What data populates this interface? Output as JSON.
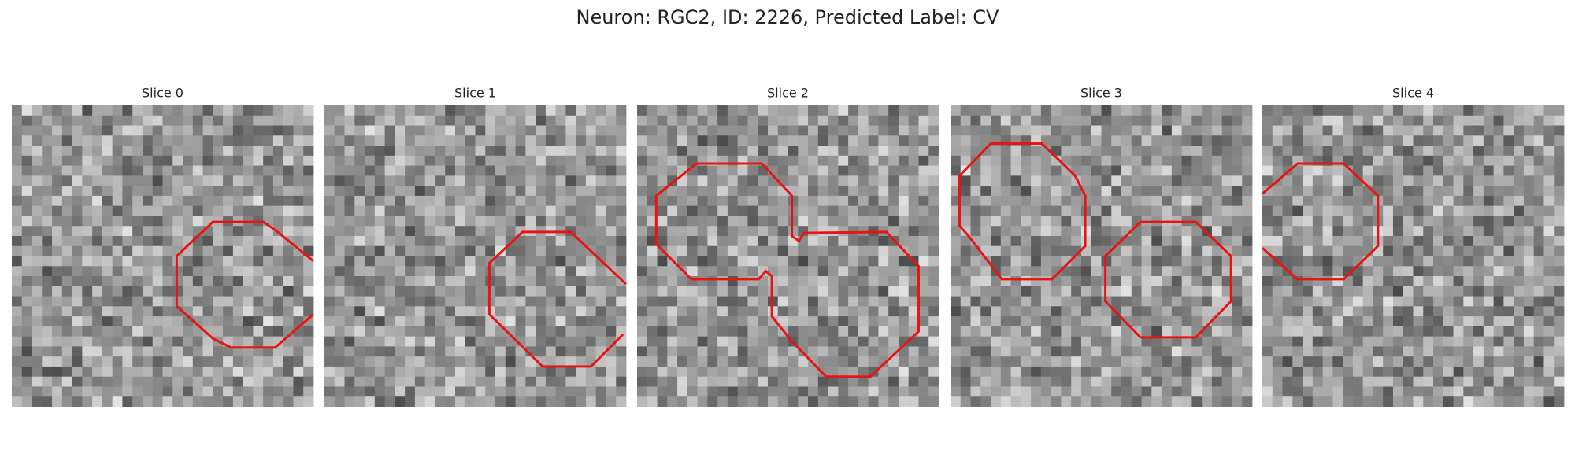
{
  "title": "Neuron: RGC2, ID: 2226, Predicted Label: CV",
  "panels": [
    {
      "title": "Slice 0"
    },
    {
      "title": "Slice 1"
    },
    {
      "title": "Slice 2"
    },
    {
      "title": "Slice 3"
    },
    {
      "title": "Slice 4"
    }
  ]
}
